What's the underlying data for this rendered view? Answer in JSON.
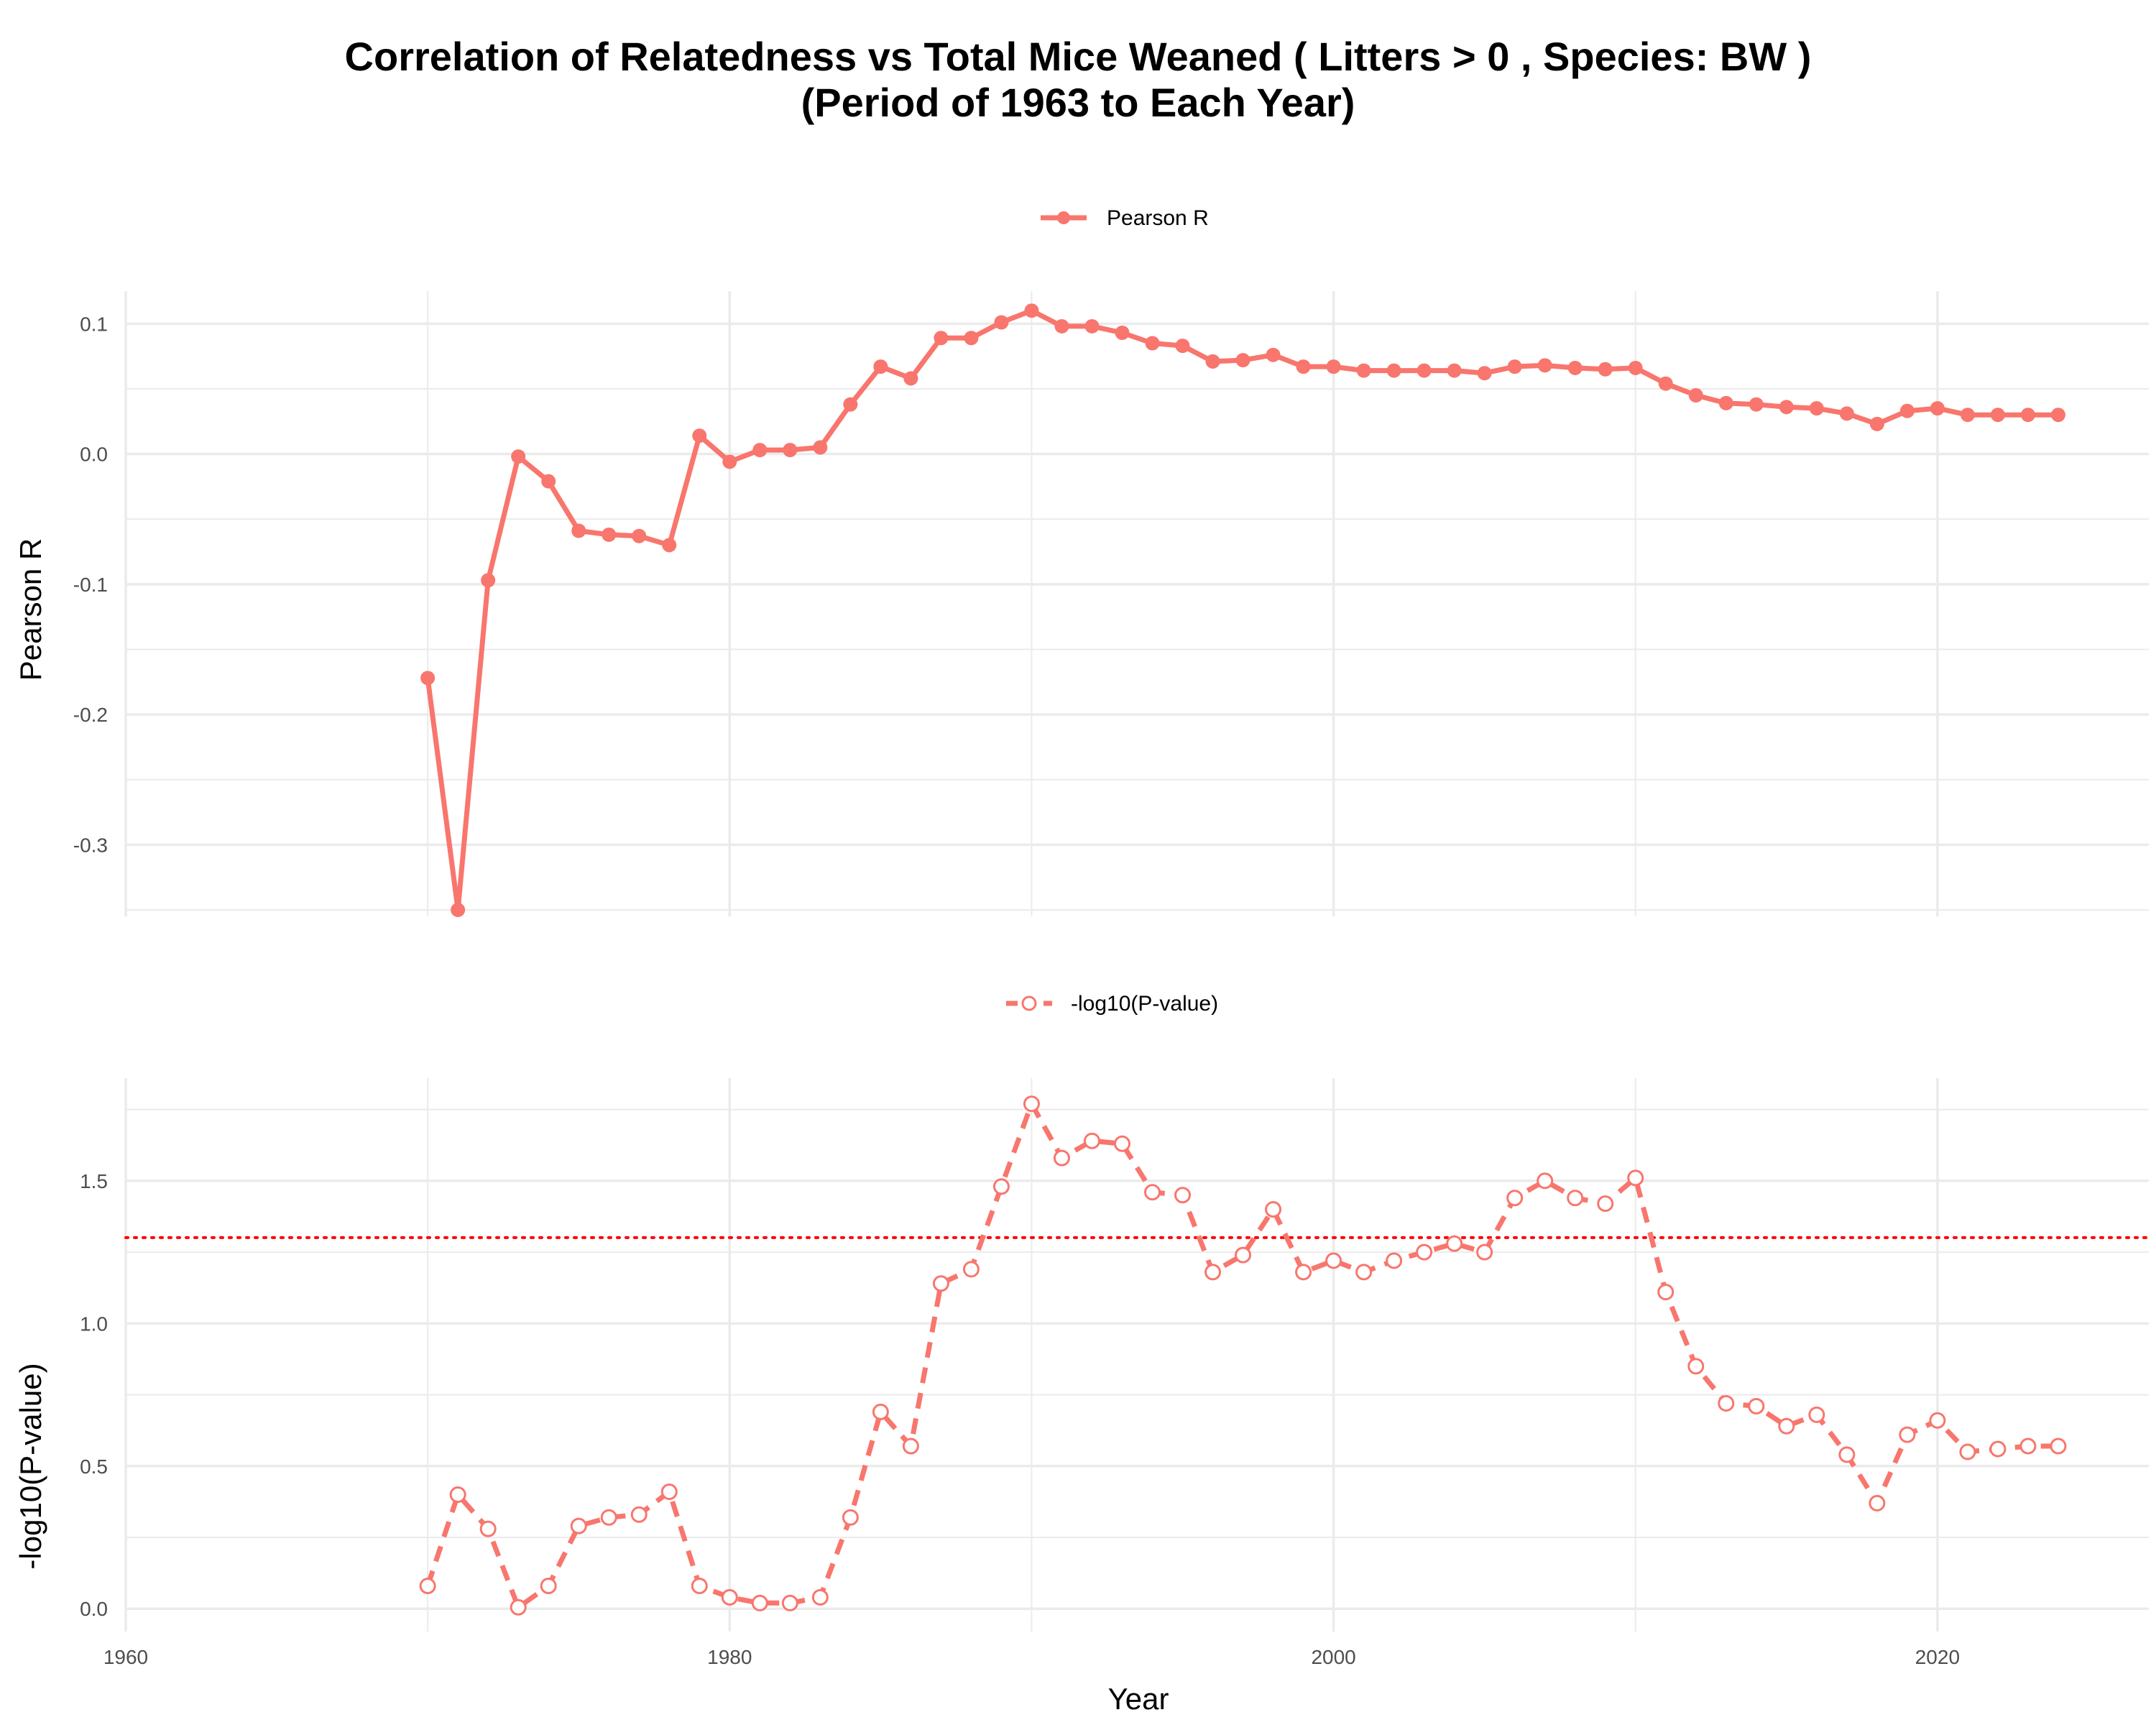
{
  "title_line1": "Correlation of Relatedness vs Total Mice Weaned ( Litters > 0 , Species: BW )",
  "title_line2": "(Period of 1963 to Each Year)",
  "xlabel": "Year",
  "colors": {
    "series": "#F8766D",
    "threshold": "#FF0000",
    "grid": "#EBEBEB",
    "tick_text": "#4D4D4D"
  },
  "chart_data": [
    {
      "type": "line",
      "ylabel": "Pearson R",
      "legend": {
        "label": "Pearson R",
        "position": "top",
        "marker": "filled-circle",
        "line": "solid"
      },
      "xlim": [
        1960,
        2027
      ],
      "ylim": [
        -0.355,
        0.125
      ],
      "x_ticks": [
        1960,
        1970,
        1980,
        1990,
        2000,
        2010,
        2020
      ],
      "x_tick_labels_shown": false,
      "y_ticks": [
        -0.3,
        -0.2,
        -0.1,
        0.0,
        0.1
      ],
      "y_tick_labels": [
        "-0.3",
        "-0.2",
        "-0.1",
        "0.0",
        "0.1"
      ],
      "grid": true,
      "series": [
        {
          "name": "Pearson R",
          "x": [
            1970,
            1971,
            1972,
            1973,
            1974,
            1975,
            1976,
            1977,
            1978,
            1979,
            1980,
            1981,
            1982,
            1983,
            1984,
            1985,
            1986,
            1987,
            1988,
            1989,
            1990,
            1991,
            1992,
            1993,
            1994,
            1995,
            1996,
            1997,
            1998,
            1999,
            2000,
            2001,
            2002,
            2003,
            2004,
            2005,
            2006,
            2007,
            2008,
            2009,
            2010,
            2011,
            2012,
            2013,
            2014,
            2015,
            2016,
            2017,
            2018,
            2019,
            2020,
            2021,
            2022,
            2023,
            2024
          ],
          "y": [
            -0.172,
            -0.35,
            -0.097,
            -0.002,
            -0.021,
            -0.059,
            -0.062,
            -0.063,
            -0.07,
            0.014,
            -0.006,
            0.003,
            0.003,
            0.005,
            0.038,
            0.067,
            0.058,
            0.089,
            0.089,
            0.101,
            0.11,
            0.098,
            0.098,
            0.093,
            0.085,
            0.083,
            0.071,
            0.072,
            0.076,
            0.067,
            0.067,
            0.064,
            0.064,
            0.064,
            0.064,
            0.062,
            0.067,
            0.068,
            0.066,
            0.065,
            0.066,
            0.054,
            0.045,
            0.039,
            0.038,
            0.036,
            0.035,
            0.031,
            0.023,
            0.033,
            0.035,
            0.03,
            0.03,
            0.03,
            0.03
          ]
        }
      ]
    },
    {
      "type": "line",
      "ylabel": "-log10(P-value)",
      "legend": {
        "label": "-log10(P-value)",
        "position": "top",
        "marker": "open-circle",
        "line": "dashed"
      },
      "xlim": [
        1960,
        2027
      ],
      "ylim": [
        -0.08,
        1.86
      ],
      "x_ticks": [
        1960,
        1980,
        2000,
        2020
      ],
      "x_minor_ticks": [
        1970,
        1990,
        2010
      ],
      "x_tick_labels": [
        "1960",
        "1980",
        "2000",
        "2020"
      ],
      "y_ticks": [
        0.0,
        0.5,
        1.0,
        1.5
      ],
      "y_tick_labels": [
        "0.0",
        "0.5",
        "1.0",
        "1.5"
      ],
      "reference_line": {
        "y": 1.301,
        "style": "dotted",
        "color": "#FF0000"
      },
      "grid": true,
      "series": [
        {
          "name": "-log10(P-value)",
          "x": [
            1970,
            1971,
            1972,
            1973,
            1974,
            1975,
            1976,
            1977,
            1978,
            1979,
            1980,
            1981,
            1982,
            1983,
            1984,
            1985,
            1986,
            1987,
            1988,
            1989,
            1990,
            1991,
            1992,
            1993,
            1994,
            1995,
            1996,
            1997,
            1998,
            1999,
            2000,
            2001,
            2002,
            2003,
            2004,
            2005,
            2006,
            2007,
            2008,
            2009,
            2010,
            2011,
            2012,
            2013,
            2014,
            2015,
            2016,
            2017,
            2018,
            2019,
            2020,
            2021,
            2022,
            2023,
            2024
          ],
          "y": [
            0.08,
            0.4,
            0.28,
            0.005,
            0.08,
            0.29,
            0.32,
            0.33,
            0.41,
            0.08,
            0.04,
            0.02,
            0.02,
            0.04,
            0.32,
            0.69,
            0.57,
            1.14,
            1.19,
            1.48,
            1.77,
            1.58,
            1.64,
            1.63,
            1.46,
            1.45,
            1.18,
            1.24,
            1.4,
            1.18,
            1.22,
            1.18,
            1.22,
            1.25,
            1.28,
            1.25,
            1.44,
            1.5,
            1.44,
            1.42,
            1.51,
            1.11,
            0.85,
            0.72,
            0.71,
            0.64,
            0.68,
            0.54,
            0.37,
            0.61,
            0.66,
            0.55,
            0.56,
            0.57,
            0.57
          ]
        }
      ]
    }
  ]
}
